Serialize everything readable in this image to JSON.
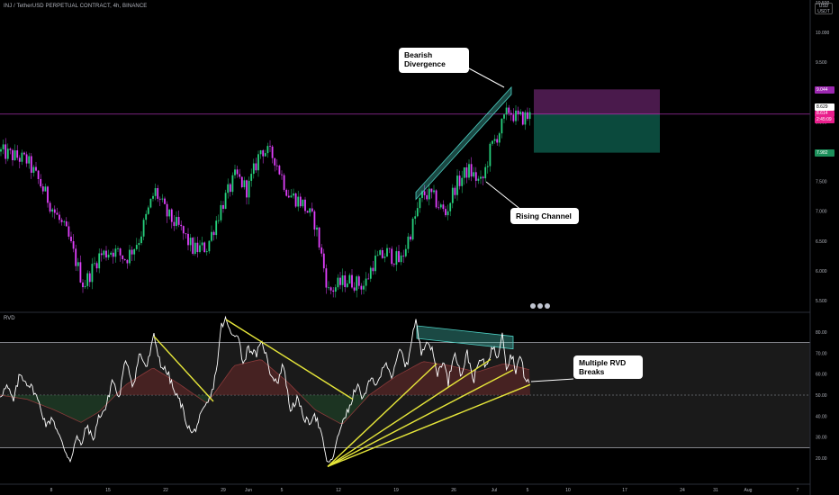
{
  "header": {
    "title": "INJ / TetherUSD PERPETUAL CONTRACT, 4h, BINANCE",
    "currency_badge_line1": "USD",
    "currency_badge_line2": "USDT"
  },
  "indicator": {
    "name": "RVD"
  },
  "price_tags": {
    "target": "9.044",
    "last": "8.629",
    "current": "8.614",
    "countdown": "2:45:09",
    "stop": "7.982"
  },
  "annotations": {
    "bearish_divergence": [
      "Bearish",
      "Divergence"
    ],
    "rising_channel": "Rising Channel",
    "multiple_rvd_breaks": [
      "Multiple RVD",
      "Breaks"
    ]
  },
  "colors": {
    "background": "#000000",
    "bull_candle": "#26d07c",
    "bear_candle": "#e040fb",
    "channel": "#4dd0c4",
    "trendline": "#e6e63a",
    "rvd_line": "#ffffff",
    "target_zone": "#4a1a4c",
    "stop_zone": "#0b4a3d",
    "price_line": "#c239c7"
  },
  "chart_data": [
    {
      "type": "candlestick",
      "title": "INJ / TetherUSD PERPETUAL CONTRACT, 4h, BINANCE",
      "x_tick_labels": [
        "8",
        "15",
        "22",
        "29",
        "Jun",
        "5",
        "12",
        "19",
        "26",
        "Jul",
        "5",
        "10",
        "17",
        "24",
        "31",
        "Aug",
        "7"
      ],
      "y_tick_labels": [
        "5.500",
        "6.000",
        "6.500",
        "7.000",
        "7.500",
        "8.000",
        "8.500",
        "9.000",
        "9.500",
        "10.000",
        "10.500"
      ],
      "ylim": [
        5.35,
        10.75
      ],
      "path_knots": [
        [
          0,
          8.0
        ],
        [
          30,
          7.85
        ],
        [
          45,
          7.45
        ],
        [
          60,
          7.0
        ],
        [
          75,
          6.6
        ],
        [
          93,
          5.75
        ],
        [
          110,
          6.25
        ],
        [
          125,
          6.35
        ],
        [
          140,
          6.2
        ],
        [
          155,
          6.55
        ],
        [
          172,
          7.35
        ],
        [
          185,
          6.95
        ],
        [
          200,
          6.7
        ],
        [
          215,
          6.35
        ],
        [
          230,
          6.4
        ],
        [
          245,
          7.05
        ],
        [
          262,
          7.6
        ],
        [
          275,
          7.35
        ],
        [
          290,
          8.05
        ],
        [
          305,
          7.9
        ],
        [
          320,
          7.3
        ],
        [
          335,
          7.15
        ],
        [
          350,
          6.8
        ],
        [
          365,
          5.65
        ],
        [
          385,
          5.85
        ],
        [
          405,
          5.75
        ],
        [
          415,
          6.15
        ],
        [
          430,
          6.3
        ],
        [
          445,
          6.15
        ],
        [
          458,
          6.75
        ],
        [
          470,
          7.3
        ],
        [
          480,
          7.25
        ],
        [
          495,
          6.95
        ],
        [
          505,
          7.4
        ],
        [
          520,
          7.7
        ],
        [
          535,
          7.45
        ],
        [
          545,
          8.05
        ],
        [
          555,
          8.35
        ],
        [
          565,
          8.7
        ],
        [
          575,
          8.55
        ],
        [
          590,
          8.6
        ]
      ],
      "price_levels": {
        "target": 9.044,
        "last": 8.629,
        "stop": 7.982
      },
      "rising_channel": {
        "from_price": 7.32,
        "to_price": 9.05
      },
      "position_box": {
        "target": 9.044,
        "entry": 8.629,
        "stop": 7.982
      }
    },
    {
      "type": "line",
      "title": "RVD",
      "y_tick_labels": [
        "20.00",
        "30.00",
        "40.00",
        "50.00",
        "60.00",
        "70.00",
        "80.00"
      ],
      "ylim": [
        15,
        88
      ],
      "bands": [
        25,
        50,
        75
      ],
      "rvd_knots": [
        [
          0,
          50
        ],
        [
          8,
          54
        ],
        [
          15,
          47
        ],
        [
          22,
          60
        ],
        [
          30,
          56
        ],
        [
          38,
          52
        ],
        [
          45,
          44
        ],
        [
          52,
          35
        ],
        [
          58,
          40
        ],
        [
          65,
          31
        ],
        [
          72,
          24
        ],
        [
          78,
          19
        ],
        [
          85,
          30
        ],
        [
          90,
          26
        ],
        [
          97,
          36
        ],
        [
          103,
          28
        ],
        [
          110,
          40
        ],
        [
          118,
          44
        ],
        [
          125,
          58
        ],
        [
          132,
          48
        ],
        [
          140,
          68
        ],
        [
          148,
          54
        ],
        [
          155,
          70
        ],
        [
          163,
          63
        ],
        [
          171,
          78
        ],
        [
          179,
          64
        ],
        [
          187,
          60
        ],
        [
          194,
          51
        ],
        [
          201,
          46
        ],
        [
          208,
          36
        ],
        [
          214,
          31
        ],
        [
          221,
          38
        ],
        [
          228,
          44
        ],
        [
          235,
          50
        ],
        [
          241,
          64
        ],
        [
          246,
          83
        ],
        [
          251,
          86
        ],
        [
          257,
          78
        ],
        [
          264,
          80
        ],
        [
          270,
          65
        ],
        [
          276,
          73
        ],
        [
          284,
          69
        ],
        [
          292,
          75
        ],
        [
          300,
          61
        ],
        [
          308,
          56
        ],
        [
          315,
          65
        ],
        [
          322,
          43
        ],
        [
          330,
          48
        ],
        [
          337,
          40
        ],
        [
          343,
          36
        ],
        [
          349,
          42
        ],
        [
          356,
          33
        ],
        [
          362,
          20
        ],
        [
          367,
          17
        ],
        [
          374,
          27
        ],
        [
          381,
          39
        ],
        [
          388,
          43
        ],
        [
          396,
          55
        ],
        [
          404,
          48
        ],
        [
          412,
          58
        ],
        [
          420,
          55
        ],
        [
          428,
          67
        ],
        [
          436,
          58
        ],
        [
          444,
          72
        ],
        [
          452,
          63
        ],
        [
          458,
          79
        ],
        [
          462,
          85
        ],
        [
          468,
          70
        ],
        [
          474,
          77
        ],
        [
          480,
          71
        ],
        [
          486,
          60
        ],
        [
          492,
          67
        ],
        [
          498,
          56
        ],
        [
          505,
          72
        ],
        [
          512,
          59
        ],
        [
          519,
          70
        ],
        [
          526,
          57
        ],
        [
          533,
          67
        ],
        [
          540,
          64
        ],
        [
          547,
          73
        ],
        [
          553,
          68
        ],
        [
          558,
          81
        ],
        [
          563,
          62
        ],
        [
          568,
          70
        ],
        [
          573,
          62
        ],
        [
          578,
          69
        ],
        [
          583,
          58
        ],
        [
          589,
          55
        ]
      ],
      "signal_knots": [
        [
          0,
          50
        ],
        [
          30,
          48
        ],
        [
          60,
          43
        ],
        [
          90,
          37
        ],
        [
          110,
          42
        ],
        [
          140,
          55
        ],
        [
          170,
          63
        ],
        [
          200,
          55
        ],
        [
          230,
          46
        ],
        [
          260,
          64
        ],
        [
          290,
          67
        ],
        [
          320,
          56
        ],
        [
          350,
          43
        ],
        [
          380,
          36
        ],
        [
          410,
          50
        ],
        [
          440,
          59
        ],
        [
          470,
          66
        ],
        [
          500,
          64
        ],
        [
          530,
          61
        ],
        [
          560,
          65
        ],
        [
          589,
          62
        ]
      ],
      "trendlines": [
        [
          [
            171,
            78
          ],
          [
            237,
            47
          ]
        ],
        [
          [
            251,
            86
          ],
          [
            392,
            48
          ]
        ],
        [
          [
            364,
            16
          ],
          [
            485,
            65
          ]
        ],
        [
          [
            364,
            16
          ],
          [
            545,
            67
          ]
        ],
        [
          [
            364,
            16
          ],
          [
            570,
            62
          ]
        ],
        [
          [
            364,
            16
          ],
          [
            589,
            55
          ]
        ]
      ],
      "channel_top": [
        [
          463,
          83
        ],
        [
          570,
          78
        ]
      ],
      "channel_bottom": [
        [
          463,
          77
        ],
        [
          570,
          72
        ]
      ]
    }
  ]
}
